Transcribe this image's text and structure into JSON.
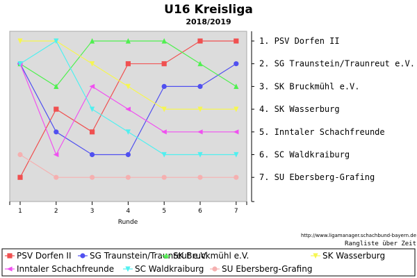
{
  "chart_data": {
    "type": "line",
    "title": "U16 Kreisliga",
    "subtitle": "2018/2019",
    "xlabel": "Runde",
    "x": [
      1,
      2,
      3,
      4,
      5,
      6,
      7
    ],
    "ylim": [
      7,
      1
    ],
    "y_reversed": true,
    "grid": false,
    "background": "#dcdcdc",
    "ranking": [
      "1. PSV Dorfen II",
      "2. SG Traunstein/Traunreut e.V.",
      "3. SK Bruckmühl e.V.",
      "4. SK Wasserburg",
      "5. Inntaler Schachfreunde",
      "6. SC Waldkraiburg",
      "7. SU Ebersberg-Grafing"
    ],
    "series": [
      {
        "name": "PSV Dorfen II",
        "color": "#f05050",
        "marker": "square",
        "values": [
          7,
          4,
          5,
          2,
          2,
          1,
          1
        ]
      },
      {
        "name": "SG Traunstein/Traunreut e.V.",
        "color": "#5050f0",
        "marker": "circle",
        "values": [
          2,
          5,
          6,
          6,
          3,
          3,
          2
        ]
      },
      {
        "name": "SK Bruckmühl e.V.",
        "color": "#50f050",
        "marker": "triangle-up",
        "values": [
          2,
          3,
          1,
          1,
          1,
          2,
          3
        ]
      },
      {
        "name": "SK Wasserburg",
        "color": "#f6f650",
        "marker": "triangle-down",
        "values": [
          1,
          1,
          2,
          3,
          4,
          4,
          4
        ]
      },
      {
        "name": "Inntaler Schachfreunde",
        "color": "#f050f0",
        "marker": "triangle-left",
        "values": [
          2,
          6,
          3,
          4,
          5,
          5,
          5
        ]
      },
      {
        "name": "SC Waldkraiburg",
        "color": "#50f0f0",
        "marker": "triangle-down",
        "values": [
          2,
          1,
          4,
          5,
          6,
          6,
          6
        ]
      },
      {
        "name": "SU Ebersberg-Grafing",
        "color": "#f5b0b0",
        "marker": "circle",
        "values": [
          6,
          7,
          7,
          7,
          7,
          7,
          7
        ]
      }
    ],
    "source": "http://www.ligamanager.schachbund-bayern.de",
    "caption": "Rangliste über Zeit",
    "legend_position": "bottom"
  }
}
